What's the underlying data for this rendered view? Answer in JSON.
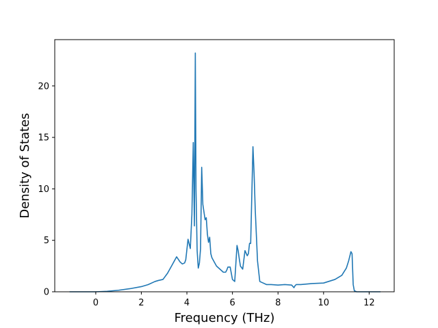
{
  "chart_data": {
    "type": "line",
    "title": "",
    "xlabel": "Frequency (THz)",
    "ylabel": "Density of States",
    "xlim": [
      -1.8,
      13.1
    ],
    "ylim": [
      0,
      24.5
    ],
    "x_ticks": [
      0,
      2,
      4,
      6,
      8,
      10,
      12
    ],
    "x_tick_labels": [
      "0",
      "2",
      "4",
      "6",
      "8",
      "10",
      "12"
    ],
    "y_ticks": [
      0,
      5,
      10,
      15,
      20
    ],
    "y_tick_labels": [
      "0",
      "5",
      "10",
      "15",
      "20"
    ],
    "grid": false,
    "legend": "none",
    "line_color": "#1f77b4",
    "series": [
      {
        "x": [
          -1.15,
          -0.5,
          0.0,
          0.5,
          1.0,
          1.5,
          2.0,
          2.3,
          2.6,
          2.75,
          2.95,
          3.15,
          3.35,
          3.45,
          3.55,
          3.7,
          3.8,
          3.9,
          3.95,
          4.05,
          4.15,
          4.22,
          4.28,
          4.33,
          4.37,
          4.4,
          4.45,
          4.5,
          4.55,
          4.6,
          4.65,
          4.7,
          4.8,
          4.85,
          4.9,
          4.95,
          5.0,
          5.05,
          5.1,
          5.3,
          5.5,
          5.6,
          5.7,
          5.75,
          5.8,
          5.9,
          6.0,
          6.1,
          6.2,
          6.25,
          6.3,
          6.35,
          6.45,
          6.55,
          6.65,
          6.7,
          6.75,
          6.8,
          6.9,
          6.95,
          7.0,
          7.1,
          7.2,
          7.3,
          7.5,
          7.7,
          8.0,
          8.3,
          8.6,
          8.7,
          8.75,
          8.8,
          9.0,
          9.5,
          10.0,
          10.5,
          10.8,
          11.0,
          11.1,
          11.2,
          11.25,
          11.3,
          11.35,
          11.45,
          12.5
        ],
        "y": [
          0.0,
          0.0,
          0.0,
          0.05,
          0.15,
          0.3,
          0.5,
          0.7,
          1.0,
          1.1,
          1.2,
          1.8,
          2.6,
          3.0,
          3.4,
          2.9,
          2.7,
          2.8,
          3.1,
          5.1,
          4.2,
          7.5,
          14.5,
          6.4,
          23.2,
          10.0,
          4.0,
          2.3,
          2.8,
          4.2,
          12.1,
          8.5,
          7.0,
          7.2,
          5.6,
          4.8,
          5.3,
          3.7,
          3.3,
          2.5,
          2.1,
          1.9,
          1.9,
          2.1,
          2.4,
          2.4,
          1.2,
          1.0,
          4.5,
          4.0,
          3.2,
          2.5,
          2.2,
          4.0,
          3.5,
          3.7,
          4.7,
          4.7,
          14.1,
          11.5,
          8.0,
          3.0,
          1.0,
          0.9,
          0.7,
          0.7,
          0.65,
          0.7,
          0.65,
          0.4,
          0.6,
          0.7,
          0.7,
          0.8,
          0.85,
          1.2,
          1.6,
          2.3,
          3.0,
          3.9,
          3.7,
          0.7,
          0.1,
          0.0,
          0.0
        ]
      }
    ]
  }
}
